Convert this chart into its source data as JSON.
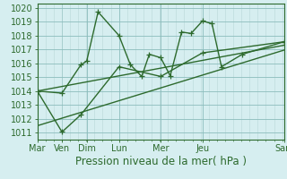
{
  "xlabel": "Pression niveau de la mer( hPa )",
  "xlim": [
    0,
    13
  ],
  "ylim": [
    1010.5,
    1020.3
  ],
  "yticks": [
    1011,
    1012,
    1013,
    1014,
    1015,
    1016,
    1017,
    1018,
    1019,
    1020
  ],
  "major_xtick_positions": [
    0,
    1.3,
    2.6,
    4.3,
    6.5,
    8.7,
    13.0
  ],
  "major_xtick_labels": [
    "Mar",
    "Ven",
    "Dim",
    "Lun",
    "Mer",
    "Jeu",
    "Sam"
  ],
  "line1_x": [
    0,
    1.3,
    2.3,
    2.6,
    3.2,
    4.3,
    4.9,
    5.5,
    5.9,
    6.5,
    7.0,
    7.6,
    8.1,
    8.7,
    9.2,
    9.7,
    10.8,
    13.0
  ],
  "line1_y": [
    1014.0,
    1013.85,
    1015.9,
    1016.15,
    1019.7,
    1018.0,
    1015.9,
    1015.05,
    1016.65,
    1016.4,
    1015.1,
    1018.25,
    1018.15,
    1019.05,
    1018.85,
    1015.75,
    1016.65,
    1017.55
  ],
  "line2_x": [
    0,
    1.3,
    2.3,
    4.3,
    6.5,
    8.7,
    13.0
  ],
  "line2_y": [
    1014.0,
    1011.05,
    1012.3,
    1015.75,
    1015.05,
    1016.75,
    1017.55
  ],
  "trend1_x": [
    0,
    13.0
  ],
  "trend1_y": [
    1014.0,
    1017.3
  ],
  "trend2_x": [
    0,
    13.0
  ],
  "trend2_y": [
    1011.5,
    1016.95
  ],
  "line_color": "#2d6a2d",
  "bg_color": "#d6eef0",
  "grid_major_color": "#8bbcbc",
  "grid_minor_color": "#b8d8d8",
  "fontsize_label": 8.5,
  "fontsize_tick": 7.0,
  "marker": "+",
  "markersize": 4.5,
  "linewidth": 1.0
}
